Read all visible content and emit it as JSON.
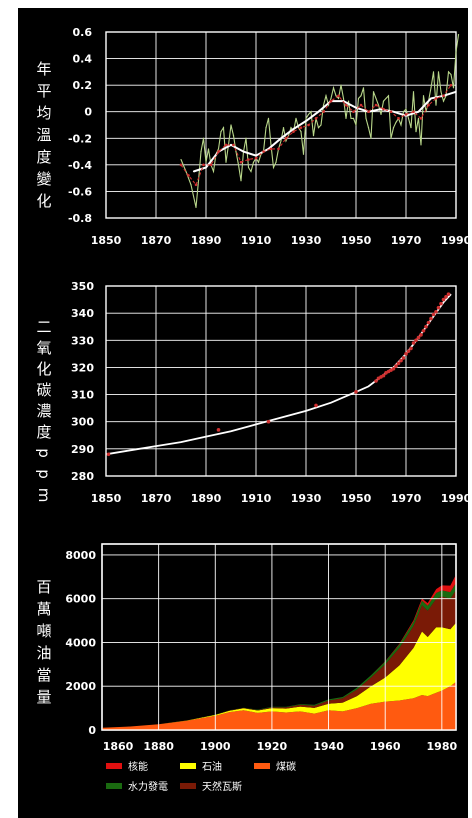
{
  "chart_data": [
    {
      "type": "line",
      "ylabel": "年平均溫度變化",
      "xlim": [
        1850,
        1990
      ],
      "ylim": [
        -0.8,
        0.6
      ],
      "x_ticks": [
        "1850",
        "1870",
        "1890",
        "1910",
        "1930",
        "1950",
        "1970",
        "1990"
      ],
      "y_ticks": [
        "0.6",
        "0.4",
        "0.2",
        "0",
        "-0.2",
        "-0.4",
        "-0.6",
        "-0.8"
      ],
      "grid": true,
      "series": [
        {
          "color": "#b8d68a",
          "x": [
            1880,
            1882,
            1884,
            1886,
            1887,
            1888,
            1889,
            1890,
            1891,
            1892,
            1893,
            1894,
            1895,
            1896,
            1897,
            1898,
            1899,
            1900,
            1901,
            1902,
            1903,
            1904,
            1905,
            1906,
            1907,
            1908,
            1909,
            1910,
            1911,
            1912,
            1913,
            1914,
            1915,
            1916,
            1917,
            1918,
            1919,
            1920,
            1921,
            1922,
            1923,
            1924,
            1925,
            1926,
            1927,
            1928,
            1929,
            1930,
            1931,
            1932,
            1933,
            1934,
            1935,
            1936,
            1937,
            1938,
            1939,
            1940,
            1941,
            1942,
            1943,
            1944,
            1945,
            1946,
            1947,
            1948,
            1949,
            1950,
            1951,
            1952,
            1953,
            1954,
            1955,
            1956,
            1957,
            1958,
            1959,
            1960,
            1961,
            1962,
            1963,
            1964,
            1965,
            1966,
            1967,
            1968,
            1969,
            1970,
            1971,
            1972,
            1973,
            1974,
            1975,
            1976,
            1977,
            1978,
            1979,
            1980,
            1981,
            1982,
            1983,
            1984,
            1985,
            1986,
            1987,
            1988,
            1989,
            1990,
            1991
          ],
          "y": [
            -0.36,
            -0.45,
            -0.55,
            -0.72,
            -0.52,
            -0.3,
            -0.2,
            -0.38,
            -0.28,
            -0.4,
            -0.45,
            -0.32,
            -0.28,
            -0.15,
            -0.12,
            -0.38,
            -0.25,
            -0.1,
            -0.18,
            -0.3,
            -0.4,
            -0.52,
            -0.3,
            -0.2,
            -0.42,
            -0.45,
            -0.38,
            -0.35,
            -0.38,
            -0.32,
            -0.3,
            -0.12,
            -0.05,
            -0.25,
            -0.42,
            -0.38,
            -0.28,
            -0.22,
            -0.12,
            -0.22,
            -0.18,
            -0.12,
            -0.15,
            -0.05,
            -0.12,
            -0.15,
            -0.32,
            -0.05,
            -0.02,
            0.0,
            -0.18,
            -0.05,
            -0.12,
            -0.1,
            0.05,
            0.12,
            0.05,
            0.1,
            0.18,
            0.12,
            0.1,
            0.2,
            0.1,
            -0.05,
            0.08,
            -0.05,
            -0.05,
            -0.1,
            0.1,
            0.12,
            0.18,
            -0.05,
            -0.12,
            -0.2,
            0.15,
            0.1,
            0.05,
            -0.02,
            0.08,
            0.1,
            0.12,
            -0.2,
            -0.12,
            -0.08,
            -0.05,
            -0.1,
            0.0,
            0.02,
            -0.05,
            -0.12,
            0.15,
            -0.15,
            -0.05,
            -0.25,
            0.12,
            0.0,
            0.08,
            0.18,
            0.3,
            0.05,
            0.3,
            0.15,
            0.08,
            0.12,
            0.3,
            0.28,
            0.18,
            0.45,
            0.58
          ]
        },
        {
          "color": "#ffffff",
          "x": [
            1885,
            1890,
            1895,
            1900,
            1905,
            1910,
            1915,
            1920,
            1925,
            1930,
            1935,
            1940,
            1945,
            1950,
            1955,
            1960,
            1965,
            1970,
            1975,
            1980,
            1985,
            1990
          ],
          "y": [
            -0.45,
            -0.42,
            -0.3,
            -0.25,
            -0.3,
            -0.33,
            -0.28,
            -0.2,
            -0.13,
            -0.07,
            0.0,
            0.08,
            0.08,
            0.03,
            0.0,
            0.02,
            0.0,
            -0.03,
            0.0,
            0.1,
            0.12,
            0.15
          ]
        },
        {
          "color": "#d03030",
          "x": [
            1880,
            1883,
            1886,
            1889,
            1892,
            1895,
            1898,
            1901,
            1904,
            1907,
            1910,
            1913,
            1916,
            1919,
            1922,
            1925,
            1928,
            1931,
            1934,
            1937,
            1940,
            1943,
            1946,
            1949,
            1952,
            1955,
            1958,
            1961,
            1964,
            1967,
            1970,
            1973,
            1976,
            1979,
            1982,
            1985,
            1988
          ],
          "y": [
            -0.4,
            -0.48,
            -0.55,
            -0.4,
            -0.4,
            -0.3,
            -0.25,
            -0.25,
            -0.38,
            -0.36,
            -0.35,
            -0.3,
            -0.28,
            -0.28,
            -0.2,
            -0.15,
            -0.12,
            -0.1,
            -0.05,
            0.0,
            0.08,
            0.12,
            0.05,
            0.0,
            0.05,
            0.0,
            0.05,
            0.02,
            0.0,
            -0.05,
            -0.02,
            0.0,
            -0.05,
            0.05,
            0.1,
            0.12,
            0.2
          ]
        }
      ]
    },
    {
      "type": "line",
      "ylabel": "二氧化碳濃度ppm",
      "xlim": [
        1850,
        1990
      ],
      "ylim": [
        280,
        350
      ],
      "x_ticks": [
        "1850",
        "1870",
        "1890",
        "1910",
        "1930",
        "1950",
        "1970",
        "1990"
      ],
      "y_ticks": [
        "350",
        "340",
        "330",
        "320",
        "310",
        "300",
        "290",
        "280"
      ],
      "grid": true,
      "series": [
        {
          "color": "#ffffff",
          "x": [
            1850,
            1860,
            1870,
            1880,
            1890,
            1900,
            1910,
            1920,
            1930,
            1940,
            1950,
            1955,
            1960,
            1965,
            1970,
            1975,
            1980,
            1985,
            1988
          ],
          "y": [
            288,
            289.5,
            291,
            292.5,
            294.5,
            296.5,
            299,
            301.5,
            304,
            307,
            311,
            313,
            316.5,
            320,
            325,
            331,
            337.5,
            344,
            347
          ]
        },
        {
          "color": "#d03030",
          "type": "scatter",
          "x": [
            1851,
            1895,
            1915,
            1934,
            1950,
            1958,
            1959,
            1960,
            1961,
            1962,
            1963,
            1964,
            1965,
            1966,
            1967,
            1968,
            1969,
            1970,
            1971,
            1972,
            1973,
            1974,
            1975,
            1976,
            1977,
            1978,
            1979,
            1980,
            1981,
            1982,
            1983,
            1984,
            1985,
            1986,
            1987
          ],
          "y": [
            288,
            297,
            300,
            306,
            311,
            315,
            316,
            316.5,
            317,
            318,
            318.5,
            319,
            319.5,
            320.5,
            321.5,
            322.5,
            323.5,
            325,
            326,
            327,
            329,
            330,
            331,
            332,
            333.5,
            335,
            336.5,
            338,
            339.5,
            340.5,
            342,
            343.5,
            345,
            346,
            347
          ]
        }
      ]
    },
    {
      "type": "area",
      "ylabel": "百萬噸油當量",
      "xlim": [
        1860,
        1985
      ],
      "ylim": [
        0,
        8500
      ],
      "x_ticks": [
        "1860",
        "1880",
        "1900",
        "1920",
        "1940",
        "1960",
        "1980"
      ],
      "y_ticks": [
        "8000",
        "6000",
        "4000",
        "2000",
        "0"
      ],
      "grid": true,
      "x": [
        1860,
        1870,
        1880,
        1890,
        1900,
        1905,
        1910,
        1915,
        1920,
        1925,
        1930,
        1935,
        1940,
        1945,
        1950,
        1955,
        1960,
        1965,
        1970,
        1973,
        1975,
        1978,
        1980,
        1983,
        1985
      ],
      "series": [
        {
          "name": "煤碳",
          "color": "#ff5a10",
          "values": [
            100,
            160,
            260,
            420,
            650,
            820,
            900,
            780,
            850,
            800,
            850,
            750,
            900,
            850,
            1000,
            1200,
            1300,
            1350,
            1450,
            1600,
            1550,
            1700,
            1800,
            2000,
            2200
          ]
        },
        {
          "name": "石油",
          "color": "#ffff00",
          "values": [
            0,
            0,
            5,
            15,
            40,
            60,
            90,
            110,
            150,
            180,
            220,
            260,
            300,
            400,
            550,
            800,
            1100,
            1600,
            2300,
            2900,
            2700,
            3000,
            2900,
            2600,
            2700
          ]
        },
        {
          "name": "天然瓦斯",
          "color": "#7a1a06",
          "values": [
            0,
            0,
            0,
            5,
            10,
            15,
            20,
            25,
            40,
            60,
            80,
            100,
            150,
            200,
            300,
            400,
            600,
            800,
            1000,
            1200,
            1200,
            1300,
            1400,
            1400,
            1500
          ]
        },
        {
          "name": "水力發電",
          "color": "#1a6a10",
          "values": [
            0,
            0,
            0,
            0,
            5,
            8,
            10,
            15,
            20,
            25,
            35,
            40,
            50,
            60,
            80,
            100,
            130,
            160,
            200,
            220,
            230,
            260,
            280,
            300,
            320
          ]
        },
        {
          "name": "核能",
          "color": "#e01010",
          "values": [
            0,
            0,
            0,
            0,
            0,
            0,
            0,
            0,
            0,
            0,
            0,
            0,
            0,
            0,
            0,
            5,
            15,
            30,
            60,
            90,
            120,
            180,
            230,
            300,
            380
          ]
        }
      ],
      "legend": {
        "placement": "bottom",
        "items": [
          {
            "label": "核能",
            "color": "#e01010"
          },
          {
            "label": "石油",
            "color": "#ffff00"
          },
          {
            "label": "煤碳",
            "color": "#ff5a10"
          },
          {
            "label": "水力發電",
            "color": "#1a6a10"
          },
          {
            "label": "天然瓦斯",
            "color": "#7a1a06"
          }
        ]
      }
    }
  ]
}
